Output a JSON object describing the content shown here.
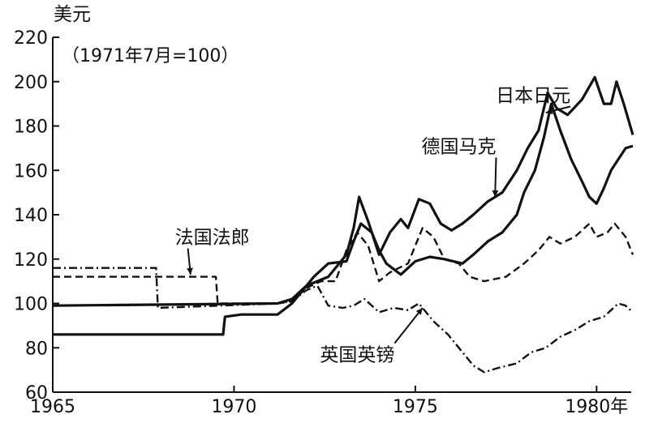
{
  "chart_data": {
    "type": "line",
    "title": "",
    "ylabel": "美元",
    "yunit_note": "（1971年7月=100）",
    "xlabel": "年",
    "xlim": [
      1965,
      1981
    ],
    "ylim": [
      60,
      220
    ],
    "xticks": [
      1965,
      1970,
      1975,
      1980
    ],
    "xtick_labels": [
      "1965",
      "1970",
      "1975",
      "1980年"
    ],
    "yticks": [
      60,
      80,
      100,
      120,
      140,
      160,
      180,
      200,
      220
    ],
    "grid": false,
    "legend": "inline-labels",
    "series": [
      {
        "name": "日本日元",
        "style": "solid-thick",
        "color": "#111111",
        "points": [
          [
            1965,
            86
          ],
          [
            1969.7,
            86
          ],
          [
            1969.75,
            94
          ],
          [
            1970.2,
            95
          ],
          [
            1971.2,
            95
          ],
          [
            1971.6,
            100
          ],
          [
            1971.9,
            106
          ],
          [
            1972.2,
            112
          ],
          [
            1972.6,
            118
          ],
          [
            1973.1,
            119
          ],
          [
            1973.3,
            128
          ],
          [
            1973.5,
            136
          ],
          [
            1973.8,
            132
          ],
          [
            1974.0,
            124
          ],
          [
            1974.2,
            118
          ],
          [
            1974.6,
            113
          ],
          [
            1975.0,
            119
          ],
          [
            1975.4,
            121
          ],
          [
            1975.8,
            120
          ],
          [
            1976.3,
            118
          ],
          [
            1976.6,
            122
          ],
          [
            1977.0,
            128
          ],
          [
            1977.4,
            132
          ],
          [
            1977.8,
            140
          ],
          [
            1978.0,
            150
          ],
          [
            1978.3,
            160
          ],
          [
            1978.55,
            175
          ],
          [
            1978.75,
            190
          ],
          [
            1979.0,
            178
          ],
          [
            1979.3,
            165
          ],
          [
            1979.6,
            155
          ],
          [
            1979.8,
            148
          ],
          [
            1980.0,
            145
          ],
          [
            1980.2,
            152
          ],
          [
            1980.4,
            160
          ],
          [
            1980.6,
            165
          ],
          [
            1980.8,
            170
          ],
          [
            1981.0,
            171
          ]
        ]
      },
      {
        "name": "德国马克",
        "style": "solid-thick",
        "color": "#111111",
        "points": [
          [
            1965,
            99
          ],
          [
            1971.2,
            100
          ],
          [
            1971.6,
            102
          ],
          [
            1972.0,
            108
          ],
          [
            1972.6,
            112
          ],
          [
            1973.1,
            122
          ],
          [
            1973.3,
            134
          ],
          [
            1973.45,
            148
          ],
          [
            1973.7,
            137
          ],
          [
            1974.0,
            122
          ],
          [
            1974.3,
            132
          ],
          [
            1974.6,
            138
          ],
          [
            1974.8,
            134
          ],
          [
            1975.1,
            147
          ],
          [
            1975.4,
            145
          ],
          [
            1975.7,
            136
          ],
          [
            1976.0,
            133
          ],
          [
            1976.3,
            136
          ],
          [
            1976.6,
            140
          ],
          [
            1977.0,
            146
          ],
          [
            1977.4,
            150
          ],
          [
            1977.8,
            160
          ],
          [
            1978.1,
            170
          ],
          [
            1978.4,
            178
          ],
          [
            1978.65,
            195
          ],
          [
            1978.9,
            188
          ],
          [
            1979.2,
            185
          ],
          [
            1979.6,
            192
          ],
          [
            1979.95,
            202
          ],
          [
            1980.2,
            190
          ],
          [
            1980.4,
            190
          ],
          [
            1980.55,
            200
          ],
          [
            1980.75,
            190
          ],
          [
            1981.0,
            176
          ]
        ]
      },
      {
        "name": "法国法郎",
        "style": "dashed",
        "color": "#111111",
        "points": [
          [
            1965,
            112
          ],
          [
            1969.5,
            112
          ],
          [
            1969.55,
            100
          ],
          [
            1971.2,
            100
          ],
          [
            1971.6,
            101
          ],
          [
            1972.0,
            107
          ],
          [
            1972.4,
            110
          ],
          [
            1972.8,
            110
          ],
          [
            1973.1,
            124
          ],
          [
            1973.4,
            132
          ],
          [
            1973.7,
            126
          ],
          [
            1974.0,
            110
          ],
          [
            1974.3,
            114
          ],
          [
            1974.8,
            118
          ],
          [
            1975.2,
            134
          ],
          [
            1975.5,
            130
          ],
          [
            1975.8,
            120
          ],
          [
            1976.2,
            118
          ],
          [
            1976.5,
            112
          ],
          [
            1976.9,
            110
          ],
          [
            1977.5,
            112
          ],
          [
            1978.0,
            118
          ],
          [
            1978.4,
            124
          ],
          [
            1978.7,
            130
          ],
          [
            1979.0,
            127
          ],
          [
            1979.4,
            130
          ],
          [
            1979.8,
            136
          ],
          [
            1980.0,
            130
          ],
          [
            1980.3,
            132
          ],
          [
            1980.5,
            136
          ],
          [
            1980.8,
            130
          ],
          [
            1981.0,
            122
          ]
        ]
      },
      {
        "name": "英国英镑",
        "style": "dash-dot",
        "color": "#111111",
        "points": [
          [
            1965,
            116
          ],
          [
            1967.85,
            116
          ],
          [
            1967.9,
            98
          ],
          [
            1971.2,
            100
          ],
          [
            1971.6,
            101
          ],
          [
            1972.0,
            106
          ],
          [
            1972.3,
            108
          ],
          [
            1972.6,
            99
          ],
          [
            1973.0,
            98
          ],
          [
            1973.3,
            99
          ],
          [
            1973.6,
            102
          ],
          [
            1974.0,
            96
          ],
          [
            1974.4,
            98
          ],
          [
            1974.8,
            97
          ],
          [
            1975.1,
            100
          ],
          [
            1975.5,
            92
          ],
          [
            1975.9,
            86
          ],
          [
            1976.3,
            78
          ],
          [
            1976.6,
            72
          ],
          [
            1976.9,
            69
          ],
          [
            1977.3,
            71
          ],
          [
            1977.8,
            73
          ],
          [
            1978.2,
            78
          ],
          [
            1978.6,
            80
          ],
          [
            1979.0,
            85
          ],
          [
            1979.4,
            88
          ],
          [
            1979.8,
            92
          ],
          [
            1980.2,
            94
          ],
          [
            1980.6,
            100
          ],
          [
            1980.8,
            99
          ],
          [
            1981.0,
            96
          ]
        ]
      }
    ],
    "annotations": [
      {
        "text": "日本日元",
        "x": 1978.25,
        "y": 191,
        "arrow_to": [
          1978.6,
          186
        ]
      },
      {
        "text": "德国马克",
        "x": 1976.2,
        "y": 168,
        "arrow_to": [
          1977.2,
          148
        ]
      },
      {
        "text": "法国法郎",
        "x": 1969.4,
        "y": 127,
        "arrow_to": [
          1968.8,
          113
        ]
      },
      {
        "text": "英国英镑",
        "x": 1973.4,
        "y": 74,
        "arrow_to": [
          1975.2,
          98
        ]
      }
    ]
  }
}
